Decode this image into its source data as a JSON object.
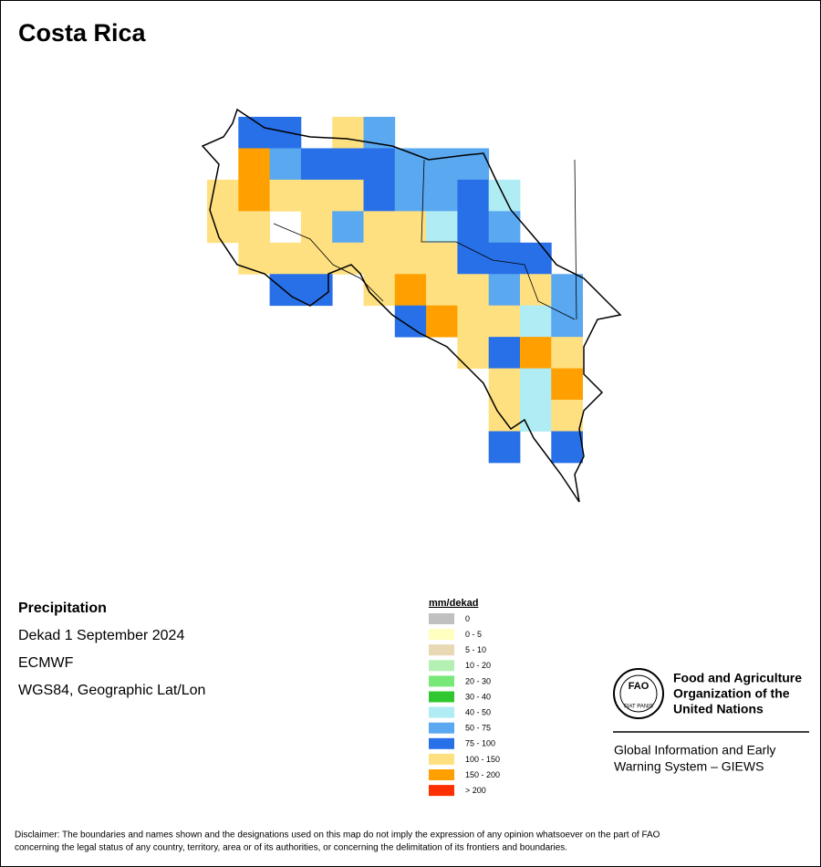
{
  "title": "Costa Rica",
  "info": {
    "variable": "Precipitation",
    "period": "Dekad 1 September 2024",
    "source": "ECMWF",
    "projection": "WGS84, Geographic Lat/Lon"
  },
  "legend": {
    "title": "mm/dekad",
    "items": [
      {
        "label": "0",
        "color": "#c0c0c0"
      },
      {
        "label": "0 - 5",
        "color": "#ffffc0"
      },
      {
        "label": "5 - 10",
        "color": "#e8d8b4"
      },
      {
        "label": "10 - 20",
        "color": "#b4f0b4"
      },
      {
        "label": "20 - 30",
        "color": "#78e878"
      },
      {
        "label": "30 - 40",
        "color": "#30c830"
      },
      {
        "label": "40 - 50",
        "color": "#b0ecf4"
      },
      {
        "label": "50 - 75",
        "color": "#5aa8f0"
      },
      {
        "label": "75 - 100",
        "color": "#2870e8"
      },
      {
        "label": "100 - 150",
        "color": "#ffe080"
      },
      {
        "label": "150 - 200",
        "color": "#ffa000"
      },
      {
        "label": "> 200",
        "color": "#ff3000"
      }
    ]
  },
  "map": {
    "cells": [
      [
        null,
        "75 - 100",
        "75 - 100",
        null,
        "100 - 150",
        "50 - 75",
        null,
        null,
        null,
        null,
        null,
        null
      ],
      [
        null,
        "150 - 200",
        "50 - 75",
        "75 - 100",
        "75 - 100",
        "75 - 100",
        "50 - 75",
        "50 - 75",
        "50 - 75",
        null,
        null,
        null
      ],
      [
        "100 - 150",
        "150 - 200",
        "100 - 150",
        "100 - 150",
        "100 - 150",
        "75 - 100",
        "50 - 75",
        "50 - 75",
        "75 - 100",
        "40 - 50",
        null,
        null
      ],
      [
        "100 - 150",
        "100 - 150",
        null,
        "100 - 150",
        "50 - 75",
        "100 - 150",
        "100 - 150",
        "40 - 50",
        "75 - 100",
        "50 - 75",
        null,
        null
      ],
      [
        null,
        "100 - 150",
        "100 - 150",
        "100 - 150",
        "100 - 150",
        "100 - 150",
        "100 - 150",
        "100 - 150",
        "75 - 100",
        "75 - 100",
        "75 - 100",
        null
      ],
      [
        null,
        null,
        "75 - 100",
        "75 - 100",
        null,
        "100 - 150",
        "150 - 200",
        "100 - 150",
        "100 - 150",
        "50 - 75",
        "100 - 150",
        "50 - 75"
      ],
      [
        null,
        null,
        null,
        null,
        null,
        null,
        "75 - 100",
        "150 - 200",
        "100 - 150",
        "100 - 150",
        "40 - 50",
        "50 - 75"
      ],
      [
        null,
        null,
        null,
        null,
        null,
        null,
        null,
        null,
        "100 - 150",
        "75 - 100",
        "150 - 200",
        "100 - 150"
      ],
      [
        null,
        null,
        null,
        null,
        null,
        null,
        null,
        null,
        null,
        "100 - 150",
        "40 - 50",
        "150 - 200"
      ],
      [
        null,
        null,
        null,
        null,
        null,
        null,
        null,
        null,
        null,
        "100 - 150",
        "40 - 50",
        "100 - 150"
      ],
      [
        null,
        null,
        null,
        null,
        null,
        null,
        null,
        null,
        null,
        "75 - 100",
        null,
        "75 - 100"
      ]
    ]
  },
  "logo": {
    "mark": "FAO",
    "motto": "FIAT PANIS",
    "org": [
      "Food and Agriculture",
      "Organization of the",
      "United Nations"
    ],
    "system": [
      "Global Information and Early",
      "Warning System – GIEWS"
    ]
  },
  "disclaimer": [
    "Disclaimer: The boundaries and names shown and the designations used on this map do not imply the expression of any opinion whatsoever on the part of FAO",
    "concerning the legal status of any country, territory, area or of its authorities, or concerning the delimitation of its frontiers and boundaries."
  ]
}
